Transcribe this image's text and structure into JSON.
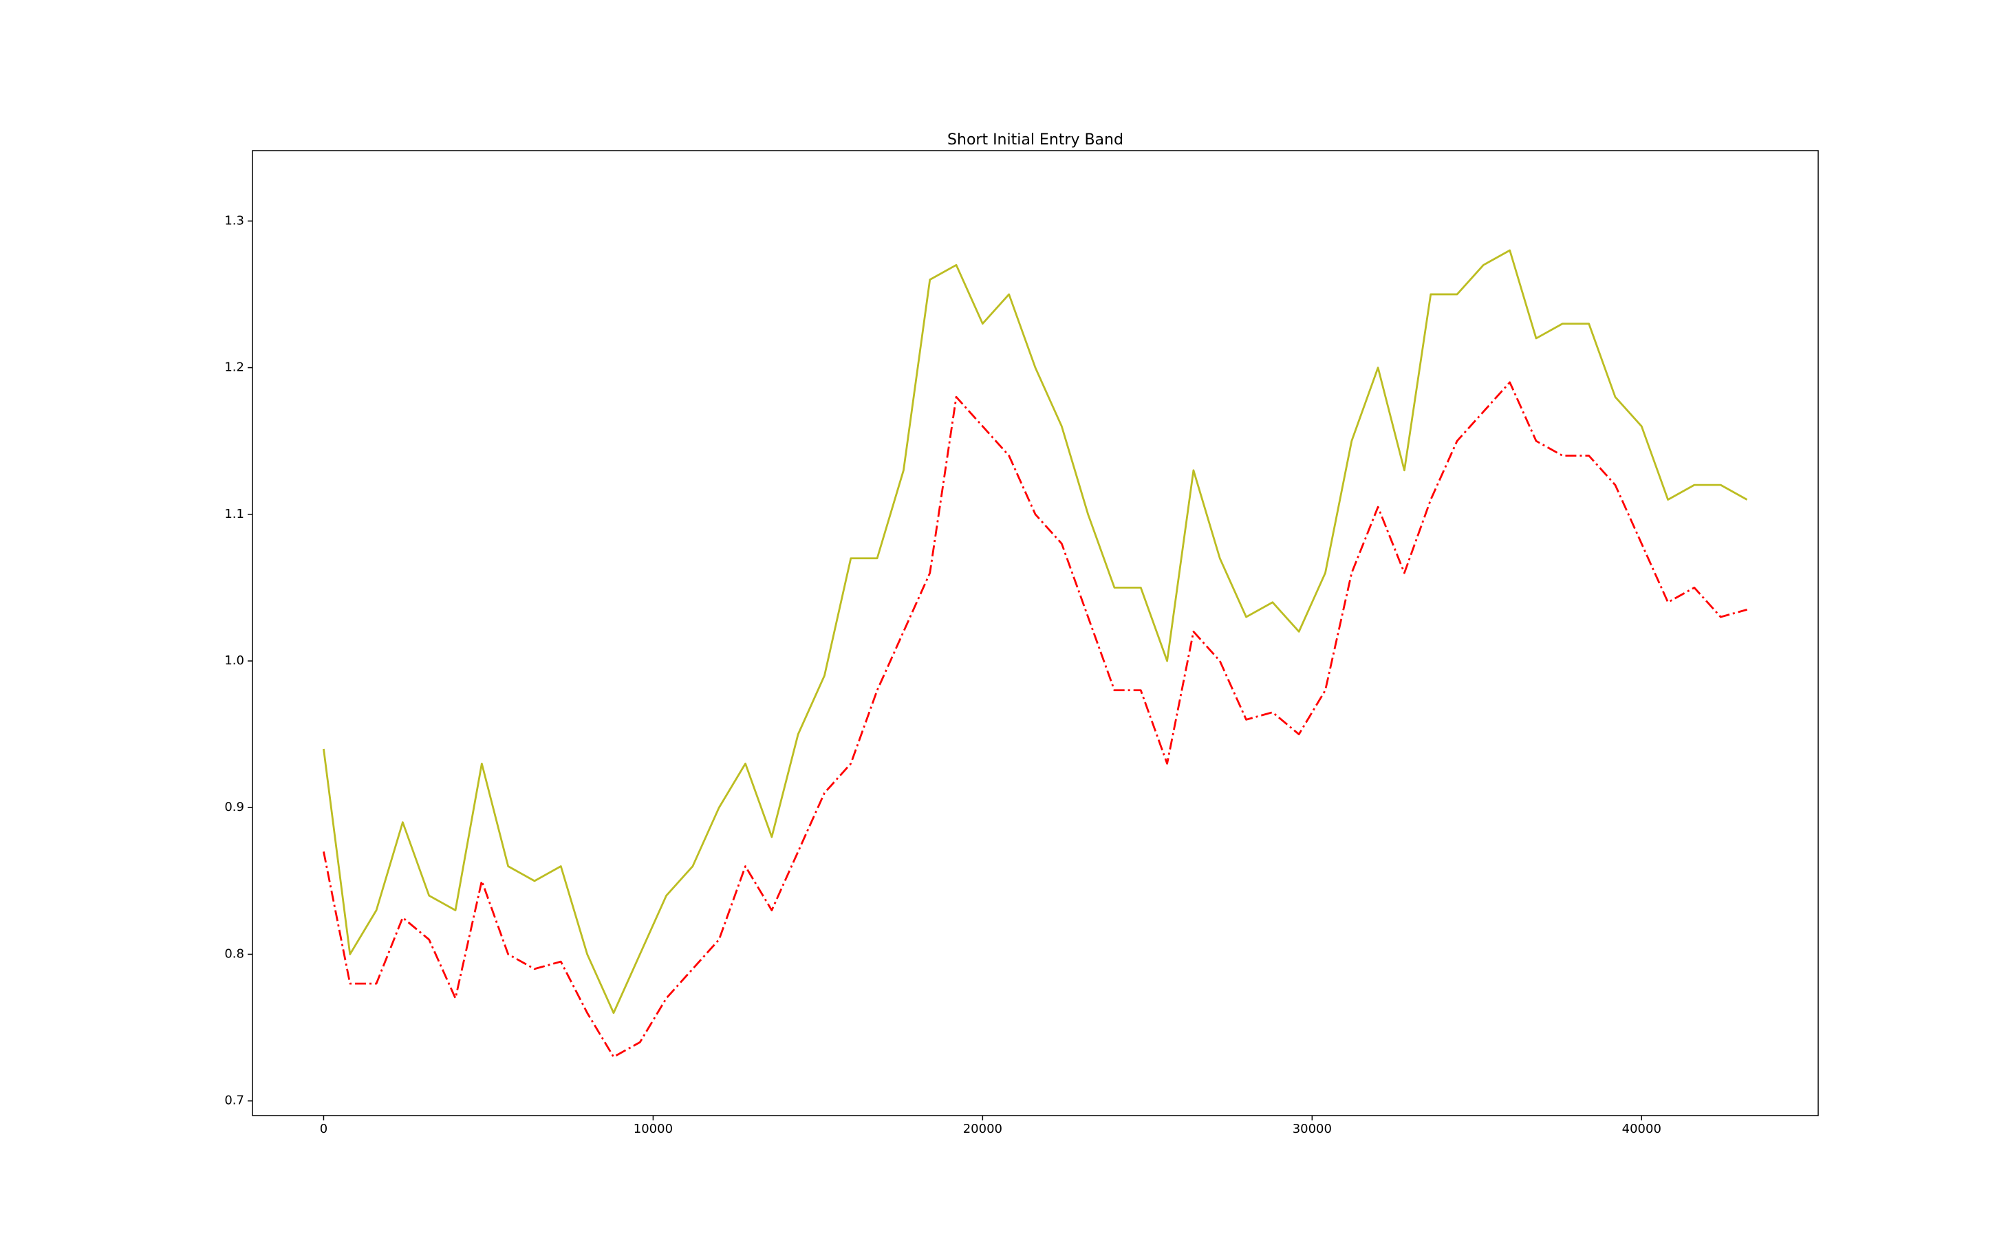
{
  "chart_data": {
    "type": "line",
    "title": "Short Initial Entry Band",
    "x": [
      0,
      800,
      1600,
      2400,
      3200,
      4000,
      4800,
      5600,
      6400,
      7200,
      8000,
      8800,
      9600,
      10400,
      11200,
      12000,
      12800,
      13600,
      14400,
      15200,
      16000,
      16800,
      17600,
      18400,
      19200,
      20000,
      20800,
      21600,
      22400,
      23200,
      24000,
      24800,
      25600,
      26400,
      27200,
      28000,
      28800,
      29600,
      30400,
      31200,
      32000,
      32800,
      33600,
      34400,
      35200,
      36000,
      36800,
      37600,
      38400,
      39200,
      40000,
      40800,
      41600,
      42400,
      43200
    ],
    "series": [
      {
        "color": "#bcbd22",
        "style": "solid",
        "values": [
          0.94,
          0.8,
          0.83,
          0.89,
          0.84,
          0.83,
          0.93,
          0.86,
          0.85,
          0.86,
          0.8,
          0.76,
          0.8,
          0.84,
          0.86,
          0.9,
          0.93,
          0.88,
          0.95,
          0.99,
          1.07,
          1.07,
          1.13,
          1.26,
          1.27,
          1.23,
          1.25,
          1.2,
          1.16,
          1.1,
          1.05,
          1.05,
          1.0,
          1.13,
          1.07,
          1.03,
          1.04,
          1.02,
          1.06,
          1.15,
          1.2,
          1.13,
          1.25,
          1.25,
          1.27,
          1.28,
          1.22,
          1.23,
          1.23,
          1.18,
          1.16,
          1.11,
          1.12,
          1.12,
          1.11
        ]
      },
      {
        "color": "#ff0000",
        "style": "dashdot",
        "values": [
          0.87,
          0.78,
          0.78,
          0.825,
          0.81,
          0.77,
          0.85,
          0.8,
          0.79,
          0.795,
          0.76,
          0.73,
          0.74,
          0.77,
          0.79,
          0.81,
          0.86,
          0.83,
          0.87,
          0.91,
          0.93,
          0.98,
          1.02,
          1.06,
          1.18,
          1.16,
          1.14,
          1.1,
          1.08,
          1.03,
          0.98,
          0.98,
          0.93,
          1.02,
          1.0,
          0.96,
          0.965,
          0.95,
          0.98,
          1.06,
          1.105,
          1.06,
          1.11,
          1.15,
          1.17,
          1.19,
          1.15,
          1.14,
          1.14,
          1.12,
          1.08,
          1.04,
          1.05,
          1.03,
          1.035
        ]
      }
    ],
    "xlim": [
      -2160,
      45360
    ],
    "xticks": [
      0,
      10000,
      20000,
      30000,
      40000
    ],
    "ylim": [
      0.69,
      1.348
    ],
    "yticks": [
      0.7,
      0.8,
      0.9,
      {
        "value": 1,
        "label": "1.0"
      },
      1.1,
      1.2,
      1.3
    ],
    "grid": false
  }
}
